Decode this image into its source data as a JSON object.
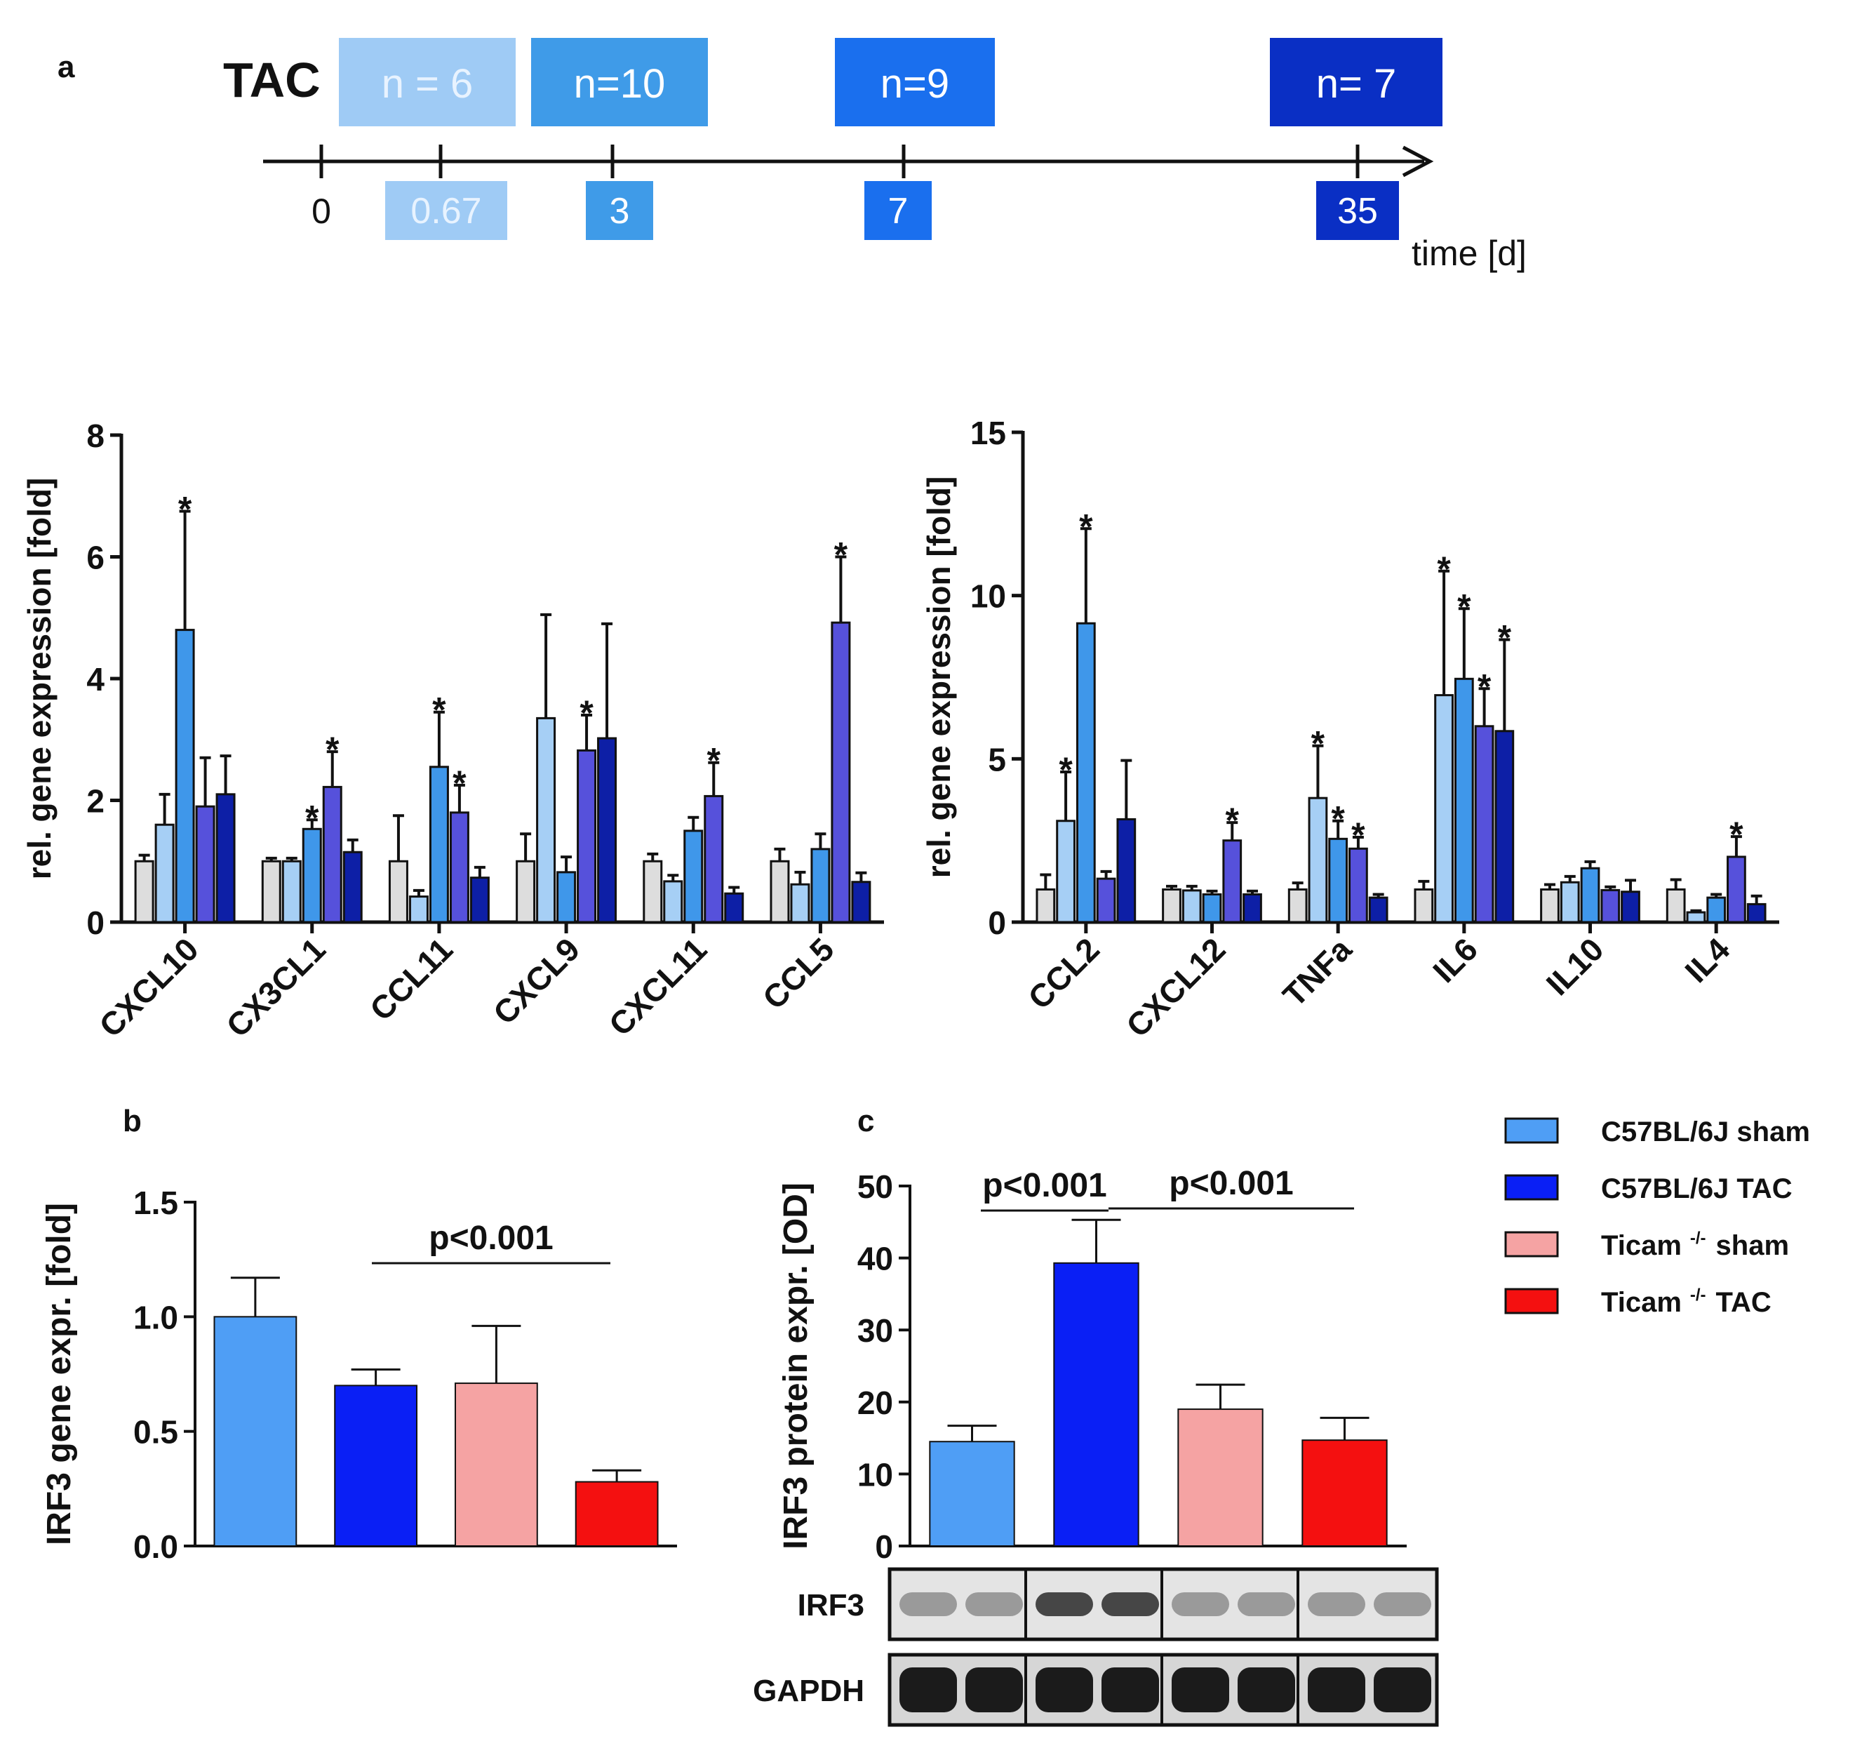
{
  "timeline": {
    "panel_label": "a",
    "title": "TAC",
    "groups": [
      {
        "n_label": "n = 6",
        "time": "0.67",
        "color": "#9fcbf5",
        "text_color": "#e8f3ff"
      },
      {
        "n_label": "n=10",
        "time": "3",
        "color": "#3f9be8",
        "text_color": "#ffffff"
      },
      {
        "n_label": "n=9",
        "time": "7",
        "color": "#1a6fee",
        "text_color": "#ffffff"
      },
      {
        "n_label": "n= 7",
        "time": "35",
        "color": "#0a2fc4",
        "text_color": "#ffffff"
      }
    ],
    "zero_label": "0",
    "axis_label": "time [d]"
  },
  "chart_data": [
    {
      "id": "a-left",
      "type": "bar",
      "ylabel": "rel. gene expression [fold]",
      "ylim": [
        0,
        8
      ],
      "yticks": [
        "0",
        "2",
        "4",
        "6",
        "8"
      ],
      "categories": [
        "CXCL10",
        "CX3CL1",
        "CCL11",
        "CXCL9",
        "CXCL11",
        "CCL5"
      ],
      "series": [
        {
          "name": "sham",
          "color": "#dddddd",
          "values": [
            1.0,
            1.0,
            1.0,
            1.0,
            1.0,
            1.0
          ],
          "errors": [
            0.1,
            0.05,
            0.75,
            0.45,
            0.12,
            0.2
          ],
          "stars": [
            false,
            false,
            false,
            false,
            false,
            false
          ]
        },
        {
          "name": "0.67 d",
          "color": "#a6cff5",
          "values": [
            1.6,
            1.0,
            0.42,
            3.35,
            0.67,
            0.62
          ],
          "errors": [
            0.5,
            0.05,
            0.1,
            1.7,
            0.1,
            0.2
          ],
          "stars": [
            false,
            false,
            false,
            false,
            false,
            false
          ]
        },
        {
          "name": "3 d",
          "color": "#3f97ea",
          "values": [
            4.8,
            1.53,
            2.55,
            0.82,
            1.5,
            1.2
          ],
          "errors": [
            1.95,
            0.15,
            0.9,
            0.25,
            0.22,
            0.25
          ],
          "stars": [
            true,
            true,
            true,
            false,
            false,
            false
          ]
        },
        {
          "name": "7 d",
          "color": "#5651db",
          "values": [
            1.9,
            2.22,
            1.8,
            2.82,
            2.07,
            4.92
          ],
          "errors": [
            0.8,
            0.58,
            0.45,
            0.58,
            0.55,
            1.08
          ],
          "stars": [
            false,
            true,
            true,
            true,
            true,
            true
          ]
        },
        {
          "name": "35 d",
          "color": "#0d1fa6",
          "values": [
            2.1,
            1.15,
            0.73,
            3.02,
            0.47,
            0.66
          ],
          "errors": [
            0.63,
            0.2,
            0.17,
            1.88,
            0.1,
            0.15
          ],
          "stars": [
            false,
            false,
            false,
            false,
            false,
            false
          ]
        }
      ],
      "star_symbol": "*"
    },
    {
      "id": "a-right",
      "type": "bar",
      "ylabel": "rel. gene expression [fold]",
      "ylim": [
        0,
        15
      ],
      "yticks": [
        "0",
        "5",
        "10",
        "15"
      ],
      "categories": [
        "CCL2",
        "CXCL12",
        "TNFa",
        "IL6",
        "IL10",
        "IL4"
      ],
      "series": [
        {
          "name": "sham",
          "color": "#dddddd",
          "values": [
            1.0,
            1.0,
            1.0,
            1.0,
            1.0,
            1.0
          ],
          "errors": [
            0.45,
            0.1,
            0.2,
            0.25,
            0.15,
            0.3
          ],
          "stars": [
            false,
            false,
            false,
            false,
            false,
            false
          ]
        },
        {
          "name": "0.67 d",
          "color": "#a6cff5",
          "values": [
            3.1,
            0.97,
            3.8,
            6.95,
            1.22,
            0.3
          ],
          "errors": [
            1.5,
            0.13,
            1.6,
            3.8,
            0.18,
            0.05
          ],
          "stars": [
            true,
            false,
            true,
            true,
            false,
            false
          ]
        },
        {
          "name": "3 d",
          "color": "#3f97ea",
          "values": [
            9.15,
            0.85,
            2.55,
            7.45,
            1.65,
            0.75
          ],
          "errors": [
            2.9,
            0.1,
            0.55,
            2.15,
            0.2,
            0.1
          ],
          "stars": [
            true,
            false,
            true,
            true,
            false,
            false
          ]
        },
        {
          "name": "7 d",
          "color": "#5651db",
          "values": [
            1.33,
            2.5,
            2.25,
            6.0,
            0.98,
            2.0
          ],
          "errors": [
            0.22,
            0.55,
            0.35,
            1.15,
            0.1,
            0.62
          ],
          "stars": [
            false,
            true,
            true,
            true,
            false,
            true
          ]
        },
        {
          "name": "35 d",
          "color": "#0d1fa6",
          "values": [
            3.15,
            0.85,
            0.75,
            5.85,
            0.93,
            0.55
          ],
          "errors": [
            1.8,
            0.1,
            0.1,
            2.8,
            0.35,
            0.25
          ],
          "stars": [
            false,
            false,
            false,
            true,
            false,
            false
          ]
        }
      ],
      "star_symbol": "*"
    },
    {
      "id": "b",
      "type": "bar",
      "panel_label": "b",
      "ylabel": "IRF3 gene expr. [fold]",
      "ylim": [
        0,
        1.5
      ],
      "yticks": [
        "0.0",
        "0.5",
        "1.0",
        "1.5"
      ],
      "categories": [
        "C57BL/6J sham",
        "C57BL/6J TAC",
        "Ticam -/- sham",
        "Ticam -/- TAC"
      ],
      "values": [
        1.0,
        0.7,
        0.71,
        0.28
      ],
      "errors": [
        0.17,
        0.07,
        0.25,
        0.05
      ],
      "colors": [
        "#4f9ef5",
        "#0a1ff5",
        "#f5a3a3",
        "#f41010"
      ],
      "significance": [
        {
          "label": "p<0.001",
          "from": 1,
          "to": 3
        }
      ]
    },
    {
      "id": "c",
      "type": "bar",
      "panel_label": "c",
      "ylabel": "IRF3 protein expr. [OD]",
      "ylim": [
        0,
        50
      ],
      "yticks": [
        "0",
        "10",
        "20",
        "30",
        "40",
        "50"
      ],
      "categories": [
        "C57BL/6J sham",
        "C57BL/6J TAC",
        "Ticam -/- sham",
        "Ticam -/- TAC"
      ],
      "values": [
        14.5,
        39.3,
        19.0,
        14.7
      ],
      "errors": [
        2.2,
        6.0,
        3.4,
        3.1
      ],
      "colors": [
        "#4f9ef5",
        "#0a1ff5",
        "#f5a3a3",
        "#f41010"
      ],
      "significance": [
        {
          "label": "p<0.001",
          "from": 0,
          "to": 1
        },
        {
          "label": "p<0.001",
          "from": 1,
          "to": 3
        }
      ]
    }
  ],
  "blot": {
    "rows": [
      "IRF3",
      "GAPDH"
    ]
  },
  "legend": [
    {
      "label": "C57BL/6J sham",
      "sup": "",
      "label_after": "",
      "color": "#4f9ef5"
    },
    {
      "label": "C57BL/6J TAC",
      "sup": "",
      "label_after": "",
      "color": "#0a1ff5"
    },
    {
      "label": "Ticam",
      "sup": "-/-",
      "label_after": "sham",
      "color": "#f5a3a3"
    },
    {
      "label": "Ticam",
      "sup": "-/-",
      "label_after": "TAC",
      "color": "#f41010"
    }
  ]
}
